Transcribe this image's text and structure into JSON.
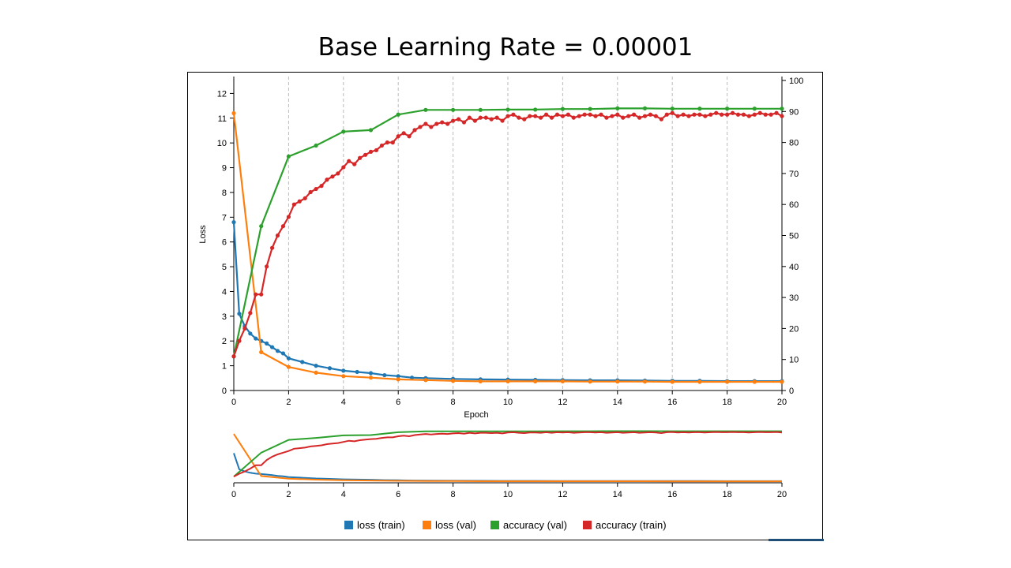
{
  "slide": {
    "title": "Base Learning Rate = 0.00001"
  },
  "colors": {
    "loss_train": "#1f77b4",
    "loss_val": "#ff7f0e",
    "accuracy_val": "#2ca02c",
    "accuracy_train": "#d62728"
  },
  "chart_data": {
    "type": "line",
    "title": "Base Learning Rate = 0.00001",
    "xlabel": "Epoch",
    "ylabel": "Loss",
    "y2label": "",
    "xlim": [
      0,
      20
    ],
    "ylim": [
      0,
      12.3
    ],
    "y2lim": [
      0,
      100
    ],
    "x_ticks": [
      "0",
      "2",
      "4",
      "6",
      "8",
      "10",
      "12",
      "14",
      "16",
      "18",
      "20"
    ],
    "y_ticks": [
      "0",
      "1",
      "2",
      "3",
      "4",
      "5",
      "6",
      "7",
      "8",
      "9",
      "10",
      "11",
      "12"
    ],
    "y2_ticks": [
      "0",
      "10",
      "20",
      "30",
      "40",
      "50",
      "60",
      "70",
      "80",
      "90",
      "100"
    ],
    "grid": "vertical dashed at every 2 epochs",
    "legend_position": "bottom",
    "series": [
      {
        "name": "loss (train)",
        "axis": "left",
        "x": [
          0,
          0.2,
          0.4,
          0.6,
          0.8,
          1,
          1.2,
          1.4,
          1.6,
          1.8,
          2,
          2.5,
          3,
          3.5,
          4,
          4.5,
          5,
          5.5,
          6,
          6.5,
          7,
          8,
          9,
          10,
          11,
          12,
          13,
          14,
          15,
          16,
          17,
          18,
          19,
          20
        ],
        "y": [
          6.8,
          3.1,
          2.6,
          2.3,
          2.1,
          2.0,
          1.9,
          1.75,
          1.6,
          1.5,
          1.3,
          1.15,
          1.0,
          0.9,
          0.8,
          0.75,
          0.7,
          0.62,
          0.58,
          0.52,
          0.5,
          0.47,
          0.45,
          0.44,
          0.43,
          0.42,
          0.41,
          0.41,
          0.4,
          0.39,
          0.39,
          0.38,
          0.38,
          0.38
        ]
      },
      {
        "name": "loss (val)",
        "axis": "left",
        "x": [
          0,
          1,
          2,
          3,
          4,
          5,
          6,
          7,
          8,
          9,
          10,
          11,
          12,
          13,
          14,
          15,
          16,
          17,
          18,
          19,
          20
        ],
        "y": [
          11.2,
          1.55,
          0.95,
          0.72,
          0.58,
          0.52,
          0.45,
          0.42,
          0.39,
          0.37,
          0.37,
          0.37,
          0.37,
          0.36,
          0.36,
          0.36,
          0.35,
          0.35,
          0.35,
          0.35,
          0.35
        ]
      },
      {
        "name": "accuracy (val)",
        "axis": "right",
        "x": [
          0,
          1,
          2,
          3,
          4,
          5,
          6,
          7,
          8,
          9,
          10,
          11,
          12,
          13,
          14,
          15,
          16,
          17,
          18,
          19,
          20
        ],
        "y": [
          11,
          53,
          75.5,
          79,
          83.5,
          84,
          89,
          90.5,
          90.5,
          90.5,
          90.6,
          90.6,
          90.8,
          90.8,
          91.0,
          91.0,
          90.9,
          90.9,
          90.9,
          90.9,
          90.9
        ]
      },
      {
        "name": "accuracy (train)",
        "axis": "right",
        "x": [
          0,
          0.2,
          0.4,
          0.6,
          0.8,
          1,
          1.2,
          1.4,
          1.6,
          1.8,
          2,
          2.2,
          2.4,
          2.6,
          2.8,
          3,
          3.2,
          3.4,
          3.6,
          3.8,
          4,
          4.2,
          4.4,
          4.6,
          4.8,
          5,
          5.2,
          5.4,
          5.6,
          5.8,
          6,
          6.2,
          6.4,
          6.6,
          6.8,
          7,
          7.2,
          7.4,
          7.6,
          7.8,
          8,
          8.2,
          8.4,
          8.6,
          8.8,
          9,
          9.2,
          9.4,
          9.6,
          9.8,
          10,
          10.2,
          10.4,
          10.6,
          10.8,
          11,
          11.2,
          11.4,
          11.6,
          11.8,
          12,
          12.2,
          12.4,
          12.6,
          12.8,
          13,
          13.2,
          13.4,
          13.6,
          13.8,
          14,
          14.2,
          14.4,
          14.6,
          14.8,
          15,
          15.2,
          15.4,
          15.6,
          15.8,
          16,
          16.2,
          16.4,
          16.6,
          16.8,
          17,
          17.2,
          17.4,
          17.6,
          17.8,
          18,
          18.2,
          18.4,
          18.6,
          18.8,
          19,
          19.2,
          19.4,
          19.6,
          19.8,
          20
        ],
        "y": [
          11,
          16,
          20,
          25,
          31,
          31,
          40,
          46,
          50,
          53,
          56,
          60,
          61,
          62,
          64,
          65,
          66,
          68,
          69,
          70,
          72,
          74,
          73,
          75,
          76,
          77,
          77.5,
          79,
          80,
          80,
          82,
          83,
          82,
          84,
          85,
          86,
          85,
          86,
          86.5,
          86,
          87,
          87.5,
          86.5,
          88,
          87,
          88,
          88,
          87.5,
          88,
          87,
          88.5,
          89,
          88,
          87.5,
          88.5,
          88.5,
          88,
          89,
          88,
          89,
          88.5,
          89,
          88,
          88.5,
          89,
          89,
          88.5,
          89,
          88,
          88.5,
          89,
          88,
          88.5,
          89,
          88,
          88.5,
          89,
          88.5,
          87.5,
          89,
          89.5,
          88.5,
          89,
          88.5,
          89,
          89,
          88.5,
          89,
          89.5,
          89,
          89,
          89.5,
          89,
          89,
          88.5,
          89,
          89.5,
          89,
          89,
          89.5,
          88.5
        ]
      }
    ],
    "overview": {
      "xlim": [
        0,
        20
      ],
      "x_ticks": [
        "0",
        "2",
        "4",
        "6",
        "8",
        "10",
        "12",
        "14",
        "16",
        "18",
        "20"
      ]
    }
  },
  "legend": {
    "items": [
      {
        "label": "loss (train)"
      },
      {
        "label": "loss (val)"
      },
      {
        "label": "accuracy (val)"
      },
      {
        "label": "accuracy (train)"
      }
    ]
  }
}
